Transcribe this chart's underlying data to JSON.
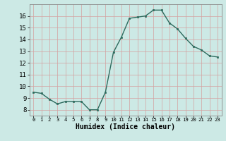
{
  "x": [
    0,
    1,
    2,
    3,
    4,
    5,
    6,
    7,
    8,
    9,
    10,
    11,
    12,
    13,
    14,
    15,
    16,
    17,
    18,
    19,
    20,
    21,
    22,
    23
  ],
  "y": [
    9.5,
    9.4,
    8.9,
    8.5,
    8.7,
    8.7,
    8.7,
    8.0,
    8.0,
    9.5,
    12.9,
    14.2,
    15.8,
    15.9,
    16.0,
    16.5,
    16.5,
    15.4,
    14.9,
    14.1,
    13.4,
    13.1,
    12.6,
    12.5
  ],
  "line_color": "#2e6b5e",
  "marker_color": "#2e6b5e",
  "bg_color": "#cce9e5",
  "grid_color": "#b8d8d4",
  "xlabel": "Humidex (Indice chaleur)",
  "xlim": [
    -0.5,
    23.5
  ],
  "ylim": [
    7.5,
    17.0
  ],
  "yticks": [
    8,
    9,
    10,
    11,
    12,
    13,
    14,
    15,
    16
  ],
  "xticks": [
    0,
    1,
    2,
    3,
    4,
    5,
    6,
    7,
    8,
    9,
    10,
    11,
    12,
    13,
    14,
    15,
    16,
    17,
    18,
    19,
    20,
    21,
    22,
    23
  ],
  "ytick_fontsize": 6.5,
  "xtick_fontsize": 5.2,
  "xlabel_fontsize": 7.0,
  "linewidth": 1.0,
  "markersize": 2.0
}
